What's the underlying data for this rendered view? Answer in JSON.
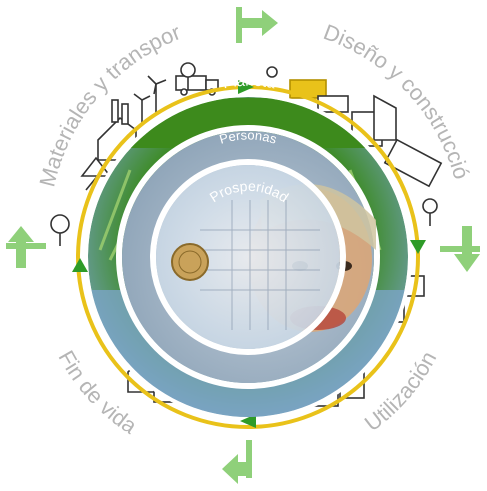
{
  "outer_labels": {
    "materials": "Materiales y transporte",
    "design": "Diseño y construcción",
    "end_of_life": "Fin de vida",
    "use": "Utilización"
  },
  "rings": {
    "planet": "Planeta",
    "people": "Personas",
    "prosperity": "Prosperidad"
  },
  "colors": {
    "ring_yellow": "#e9c21a",
    "ring_green": "#2e7d12",
    "arrow_green": "#8fd07a",
    "label_gray": "#b5b5b5",
    "people_blue": "#a7b8c8",
    "core_tint": "#d8e4ee"
  },
  "icons": [
    "truck-icon",
    "factory-icon",
    "house-icon",
    "building-icon",
    "tree-icon",
    "windmill-icon",
    "tank-icon",
    "coin-icon",
    "child-photo"
  ]
}
